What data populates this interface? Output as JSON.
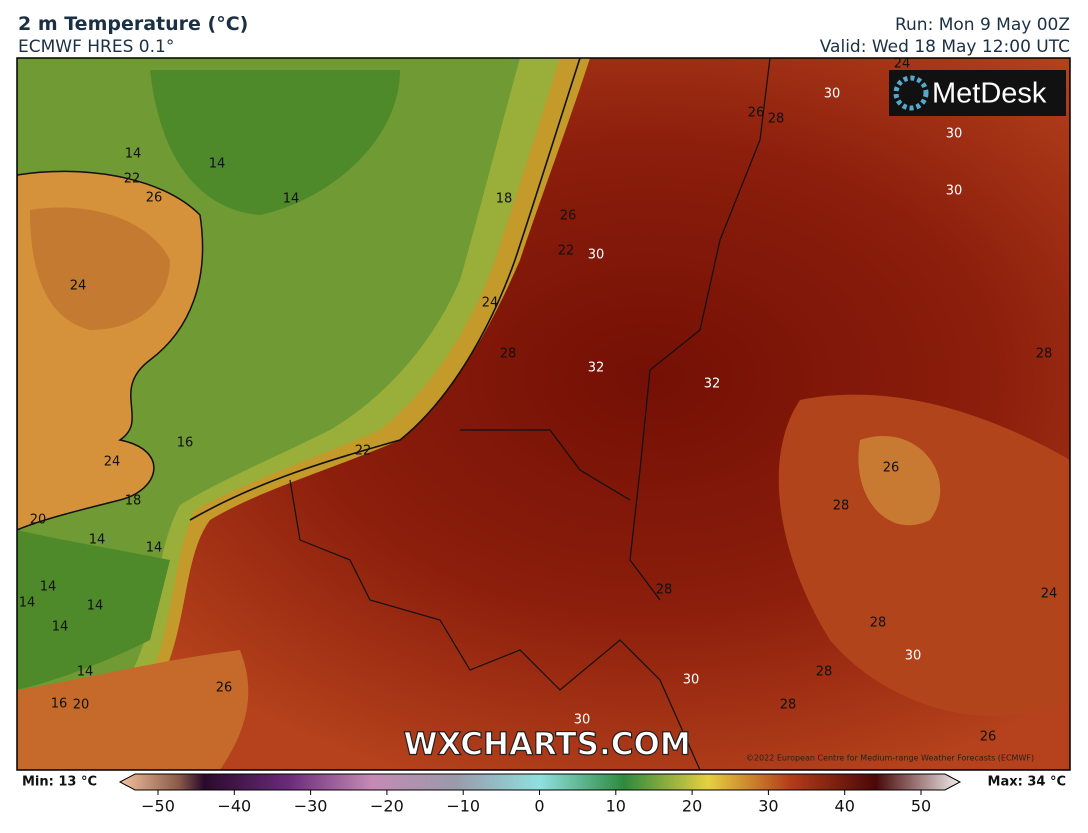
{
  "header": {
    "title": "2 m Temperature (°C)",
    "model": "ECMWF HRES 0.1°",
    "run": "Run: Mon 9 May 00Z",
    "valid": "Valid: Wed 18 May 12:00 UTC"
  },
  "logo": "MetDesk",
  "watermark": "WXCHARTS.COM",
  "copyright": "©2022 European Centre for Medium-range Weather Forecasts (ECMWF)",
  "contour_labels": [
    "14",
    "14",
    "14",
    "22",
    "26",
    "18",
    "26",
    "22",
    "30",
    "24",
    "24",
    "28",
    "32",
    "32",
    "16",
    "24",
    "22",
    "18",
    "20",
    "14",
    "14",
    "14",
    "14",
    "14",
    "14",
    "14",
    "16",
    "20",
    "26",
    "28",
    "28",
    "30",
    "28",
    "30",
    "28",
    "30",
    "26",
    "24",
    "26",
    "28",
    "28",
    "30",
    "30",
    "30",
    "26",
    "28",
    "24"
  ],
  "colorbar": {
    "min_label": "Min: 13 °C",
    "max_label": "Max: 34 °C",
    "ticks": [
      {
        "value": -50,
        "label": "−50"
      },
      {
        "value": -40,
        "label": "−40"
      },
      {
        "value": -30,
        "label": "−30"
      },
      {
        "value": -20,
        "label": "−20"
      },
      {
        "value": -10,
        "label": "−10"
      },
      0,
      10,
      20,
      30,
      40,
      50
    ]
  }
}
